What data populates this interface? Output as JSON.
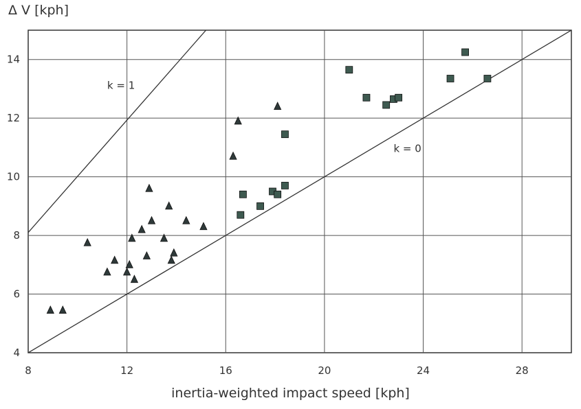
{
  "chart_data": {
    "type": "scatter",
    "xlabel": "inertia-weighted impact speed [kph]",
    "ylabel": "Δ V [kph]",
    "xlim": [
      8,
      30
    ],
    "ylim": [
      4,
      15
    ],
    "xticks": [
      8,
      12,
      16,
      20,
      24,
      28
    ],
    "yticks": [
      4,
      6,
      8,
      10,
      12,
      14
    ],
    "grid": true,
    "series": [
      {
        "marker": "triangle",
        "color": "#2f3a3a",
        "points": [
          [
            8.9,
            5.45
          ],
          [
            9.4,
            5.45
          ],
          [
            10.4,
            7.75
          ],
          [
            11.2,
            6.75
          ],
          [
            11.5,
            7.15
          ],
          [
            12.0,
            6.75
          ],
          [
            12.1,
            7.0
          ],
          [
            12.2,
            7.9
          ],
          [
            12.3,
            6.5
          ],
          [
            12.6,
            8.2
          ],
          [
            12.8,
            7.3
          ],
          [
            12.9,
            9.6
          ],
          [
            13.0,
            8.5
          ],
          [
            13.5,
            7.9
          ],
          [
            13.7,
            9.0
          ],
          [
            13.8,
            7.15
          ],
          [
            13.9,
            7.4
          ],
          [
            14.4,
            8.5
          ],
          [
            15.1,
            8.3
          ],
          [
            16.3,
            10.7
          ],
          [
            16.5,
            11.9
          ],
          [
            18.1,
            12.4
          ]
        ]
      },
      {
        "marker": "square",
        "color": "#3e5a50",
        "points": [
          [
            16.6,
            8.7
          ],
          [
            16.7,
            9.4
          ],
          [
            17.4,
            9.0
          ],
          [
            17.9,
            9.5
          ],
          [
            18.1,
            9.4
          ],
          [
            18.4,
            9.7
          ],
          [
            18.4,
            11.45
          ],
          [
            21.0,
            13.65
          ],
          [
            21.7,
            12.7
          ],
          [
            22.5,
            12.45
          ],
          [
            22.8,
            12.65
          ],
          [
            23.0,
            12.7
          ],
          [
            25.1,
            13.35
          ],
          [
            25.7,
            14.25
          ],
          [
            26.6,
            13.35
          ]
        ]
      }
    ],
    "lines": [
      {
        "label": "k = 1",
        "points": [
          [
            8,
            8.1
          ],
          [
            15.2,
            15
          ]
        ]
      },
      {
        "label": "k = 0",
        "points": [
          [
            8,
            4
          ],
          [
            30,
            15
          ]
        ]
      }
    ]
  }
}
